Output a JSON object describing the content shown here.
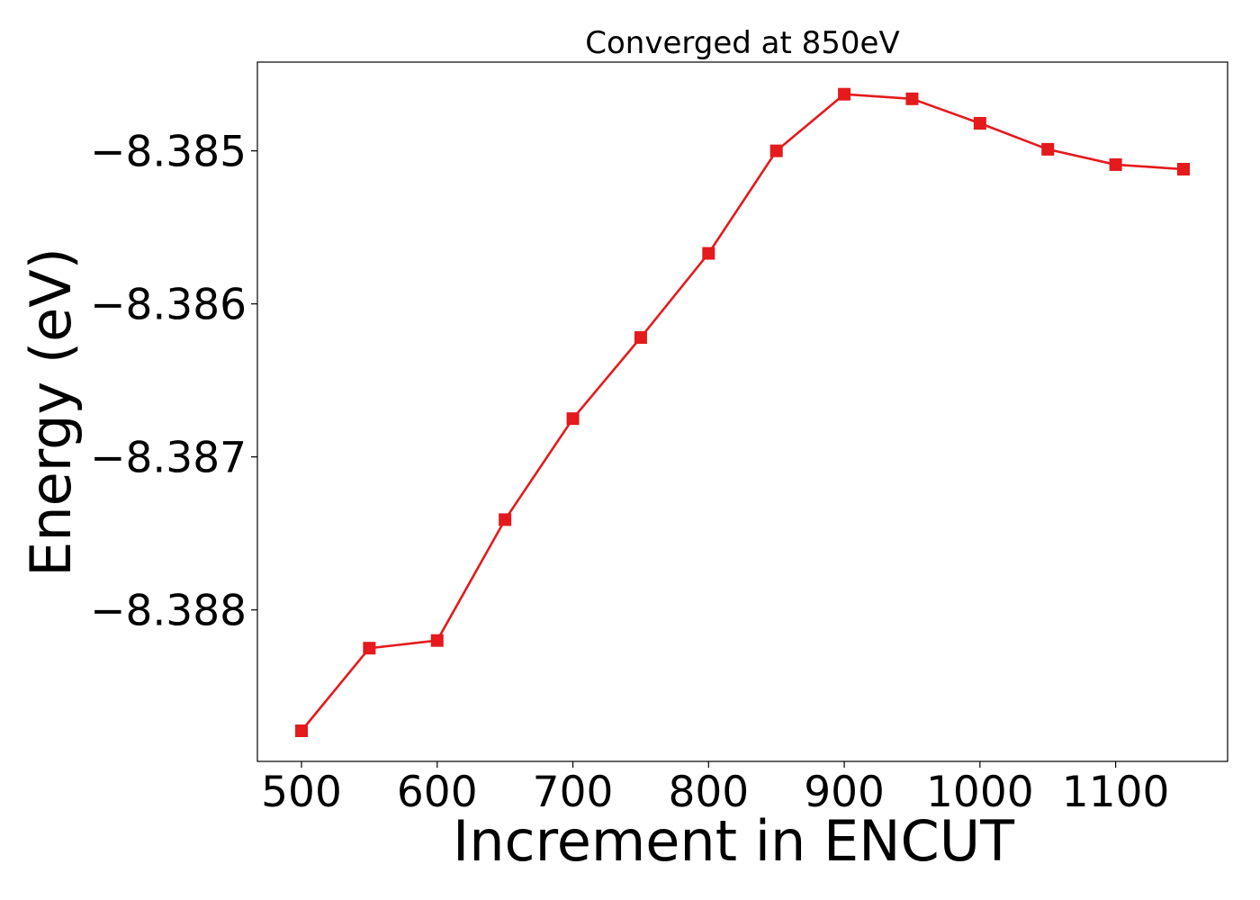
{
  "chart_data": {
    "type": "line",
    "title": "Converged at 850eV",
    "xlabel": "Increment in ENCUT",
    "ylabel": "Energy (eV)",
    "x": [
      500,
      550,
      600,
      650,
      700,
      750,
      800,
      850,
      900,
      950,
      1000,
      1050,
      1100,
      1150
    ],
    "series": [
      {
        "name": "",
        "color": "#e41a1c",
        "marker": "square",
        "values": [
          -8.38879,
          -8.38825,
          -8.3882,
          -8.38741,
          -8.38675,
          -8.38622,
          -8.38567,
          -8.385,
          -8.38463,
          -8.38466,
          -8.38482,
          -8.38499,
          -8.38509,
          -8.38512
        ]
      }
    ],
    "xlim": [
      467.5,
      1182.5
    ],
    "ylim": [
      -8.38899,
      -8.38442
    ],
    "xticks": [
      500,
      600,
      700,
      800,
      900,
      1000,
      1100
    ],
    "xtick_labels": [
      "500",
      "600",
      "700",
      "800",
      "900",
      "1000",
      "1100"
    ],
    "yticks": [
      -8.388,
      -8.387,
      -8.386,
      -8.385
    ],
    "ytick_labels": [
      "−8.388",
      "−8.387",
      "−8.386",
      "−8.385"
    ],
    "grid": false,
    "legend": "none"
  }
}
